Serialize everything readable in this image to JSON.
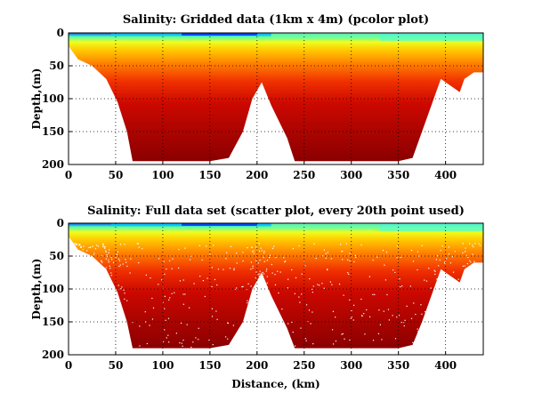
{
  "chart_data": [
    {
      "type": "heatmap",
      "title": "Salinity: Gridded data (1km x 4m) (pcolor plot)",
      "xlabel": "",
      "ylabel": "Depth,(m)",
      "xlim": [
        0,
        440
      ],
      "ylim": [
        200,
        0
      ],
      "x_ticks": [
        0,
        50,
        100,
        150,
        200,
        250,
        300,
        350,
        400
      ],
      "y_ticks": [
        0,
        50,
        100,
        150,
        200
      ],
      "grid": true,
      "colormap": "jet",
      "bottom_profile": {
        "distance_km": [
          0,
          10,
          25,
          40,
          52,
          62,
          68,
          75,
          100,
          150,
          170,
          185,
          195,
          205,
          215,
          232,
          240,
          260,
          300,
          350,
          365,
          375,
          385,
          395,
          410,
          415,
          420,
          430,
          440
        ],
        "max_depth_m": [
          20,
          40,
          50,
          70,
          105,
          150,
          195,
          195,
          195,
          195,
          190,
          150,
          100,
          75,
          110,
          160,
          195,
          195,
          195,
          195,
          190,
          150,
          110,
          70,
          85,
          90,
          70,
          60,
          60
        ]
      }
    },
    {
      "type": "scatter",
      "title": "Salinity: Full data set (scatter plot, every 20th point used)",
      "xlabel": "Distance, (km)",
      "ylabel": "Depth,(m)",
      "xlim": [
        0,
        440
      ],
      "ylim": [
        200,
        0
      ],
      "x_ticks": [
        0,
        50,
        100,
        150,
        200,
        250,
        300,
        350,
        400
      ],
      "y_ticks": [
        0,
        50,
        100,
        150,
        200
      ],
      "grid": true,
      "colormap": "jet",
      "bottom_profile": {
        "distance_km": [
          0,
          10,
          25,
          40,
          52,
          62,
          68,
          75,
          100,
          150,
          170,
          185,
          195,
          205,
          215,
          232,
          240,
          260,
          300,
          350,
          365,
          375,
          385,
          395,
          410,
          415,
          420,
          430,
          440
        ],
        "max_depth_m": [
          20,
          40,
          50,
          70,
          105,
          150,
          190,
          190,
          190,
          190,
          185,
          150,
          100,
          75,
          110,
          160,
          190,
          190,
          190,
          190,
          185,
          150,
          110,
          70,
          85,
          90,
          70,
          60,
          60
        ]
      }
    }
  ]
}
